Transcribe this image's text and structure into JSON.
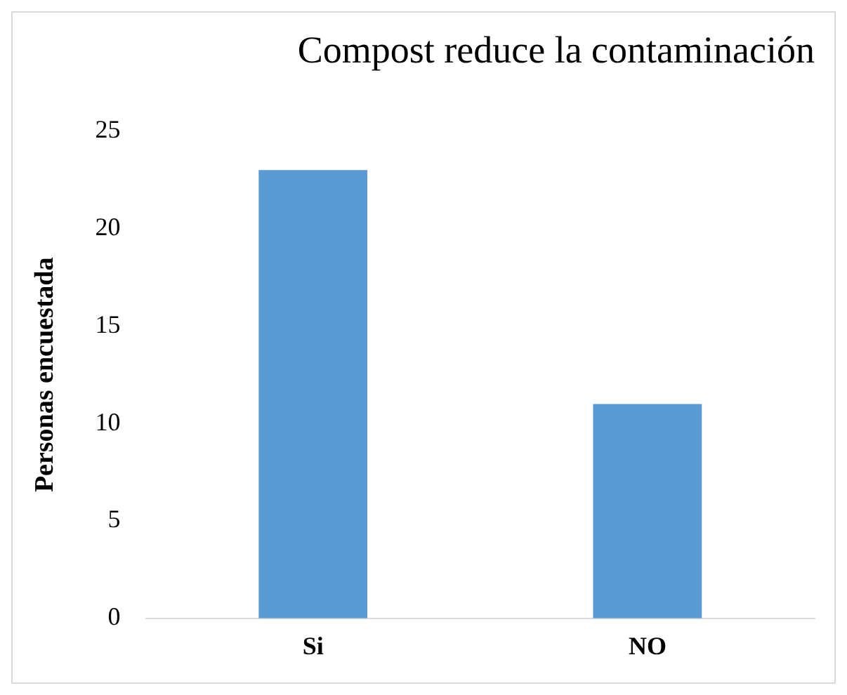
{
  "chart_data": {
    "type": "bar",
    "title": "Compost reduce la contaminación",
    "ylabel": "Personas encuestada",
    "categories": [
      "Si",
      "NO"
    ],
    "values": [
      23,
      11
    ],
    "color": "#5b9bd5",
    "ylim": [
      0,
      25
    ],
    "yticks": [
      0,
      5,
      10,
      15,
      20,
      25
    ],
    "grid": false,
    "legend": false
  }
}
